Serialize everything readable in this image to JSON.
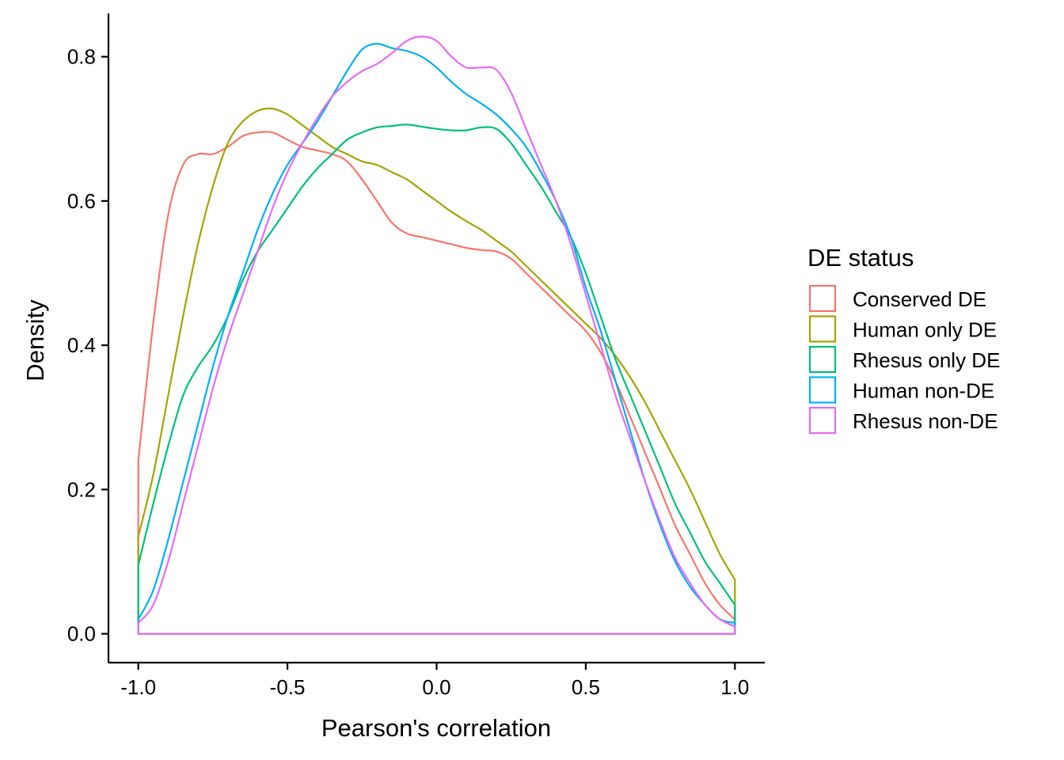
{
  "chart_data": {
    "type": "line",
    "subtype": "density",
    "xlabel": "Pearson's correlation",
    "ylabel": "Density",
    "xlim": [
      -1.1,
      1.1
    ],
    "ylim": [
      -0.04,
      0.86
    ],
    "x_ticks": [
      -1.0,
      -0.5,
      0.0,
      0.5,
      1.0
    ],
    "x_tick_labels": [
      "-1.0",
      "-0.5",
      "0.0",
      "0.5",
      "1.0"
    ],
    "y_ticks": [
      0.0,
      0.2,
      0.4,
      0.6,
      0.8
    ],
    "y_tick_labels": [
      "0.0",
      "0.2",
      "0.4",
      "0.6",
      "0.8"
    ],
    "grid": false,
    "legend": {
      "title": "DE status",
      "position": "right"
    },
    "series": [
      {
        "name": "Conserved DE",
        "color": "#F8766D",
        "x": [
          -1.0,
          -0.95,
          -0.9,
          -0.85,
          -0.8,
          -0.75,
          -0.7,
          -0.65,
          -0.6,
          -0.55,
          -0.5,
          -0.45,
          -0.4,
          -0.35,
          -0.3,
          -0.25,
          -0.2,
          -0.15,
          -0.1,
          -0.05,
          0.0,
          0.05,
          0.1,
          0.15,
          0.2,
          0.25,
          0.3,
          0.35,
          0.4,
          0.45,
          0.5,
          0.55,
          0.6,
          0.65,
          0.7,
          0.75,
          0.8,
          0.85,
          0.9,
          0.95,
          1.0
        ],
        "y": [
          0.24,
          0.43,
          0.58,
          0.65,
          0.665,
          0.665,
          0.675,
          0.69,
          0.695,
          0.695,
          0.685,
          0.675,
          0.67,
          0.665,
          0.655,
          0.63,
          0.6,
          0.57,
          0.555,
          0.55,
          0.545,
          0.54,
          0.535,
          0.532,
          0.53,
          0.52,
          0.5,
          0.48,
          0.46,
          0.44,
          0.42,
          0.39,
          0.35,
          0.3,
          0.25,
          0.2,
          0.15,
          0.11,
          0.07,
          0.04,
          0.02
        ]
      },
      {
        "name": "Human only DE",
        "color": "#A3A500",
        "x": [
          -1.0,
          -0.95,
          -0.9,
          -0.85,
          -0.8,
          -0.75,
          -0.7,
          -0.65,
          -0.6,
          -0.55,
          -0.5,
          -0.45,
          -0.4,
          -0.35,
          -0.3,
          -0.25,
          -0.2,
          -0.15,
          -0.1,
          -0.05,
          0.0,
          0.05,
          0.1,
          0.15,
          0.2,
          0.25,
          0.3,
          0.35,
          0.4,
          0.45,
          0.5,
          0.55,
          0.6,
          0.65,
          0.7,
          0.75,
          0.8,
          0.85,
          0.9,
          0.95,
          1.0
        ],
        "y": [
          0.135,
          0.22,
          0.33,
          0.44,
          0.54,
          0.62,
          0.68,
          0.71,
          0.725,
          0.728,
          0.72,
          0.705,
          0.69,
          0.675,
          0.665,
          0.655,
          0.65,
          0.64,
          0.63,
          0.615,
          0.6,
          0.585,
          0.572,
          0.56,
          0.545,
          0.53,
          0.51,
          0.49,
          0.47,
          0.45,
          0.43,
          0.41,
          0.385,
          0.355,
          0.32,
          0.28,
          0.24,
          0.2,
          0.155,
          0.11,
          0.075
        ]
      },
      {
        "name": "Rhesus only DE",
        "color": "#00BF7D",
        "x": [
          -1.0,
          -0.95,
          -0.9,
          -0.85,
          -0.8,
          -0.75,
          -0.7,
          -0.65,
          -0.6,
          -0.55,
          -0.5,
          -0.45,
          -0.4,
          -0.35,
          -0.3,
          -0.25,
          -0.2,
          -0.15,
          -0.1,
          -0.05,
          0.0,
          0.05,
          0.1,
          0.15,
          0.2,
          0.25,
          0.3,
          0.35,
          0.4,
          0.45,
          0.5,
          0.55,
          0.6,
          0.65,
          0.7,
          0.75,
          0.8,
          0.85,
          0.9,
          0.95,
          1.0
        ],
        "y": [
          0.095,
          0.18,
          0.26,
          0.33,
          0.37,
          0.4,
          0.44,
          0.49,
          0.53,
          0.56,
          0.59,
          0.62,
          0.645,
          0.665,
          0.685,
          0.695,
          0.702,
          0.704,
          0.706,
          0.703,
          0.7,
          0.698,
          0.698,
          0.702,
          0.7,
          0.68,
          0.65,
          0.62,
          0.585,
          0.55,
          0.5,
          0.44,
          0.38,
          0.33,
          0.28,
          0.23,
          0.18,
          0.14,
          0.1,
          0.07,
          0.04
        ]
      },
      {
        "name": "Human non-DE",
        "color": "#00B0F6",
        "x": [
          -1.0,
          -0.95,
          -0.9,
          -0.85,
          -0.8,
          -0.75,
          -0.7,
          -0.65,
          -0.6,
          -0.55,
          -0.5,
          -0.45,
          -0.4,
          -0.35,
          -0.3,
          -0.25,
          -0.2,
          -0.15,
          -0.1,
          -0.05,
          0.0,
          0.05,
          0.1,
          0.15,
          0.2,
          0.25,
          0.3,
          0.35,
          0.4,
          0.45,
          0.5,
          0.55,
          0.6,
          0.65,
          0.7,
          0.75,
          0.8,
          0.85,
          0.9,
          0.95,
          1.0
        ],
        "y": [
          0.02,
          0.06,
          0.13,
          0.21,
          0.29,
          0.37,
          0.44,
          0.5,
          0.56,
          0.61,
          0.65,
          0.68,
          0.71,
          0.745,
          0.78,
          0.81,
          0.818,
          0.812,
          0.808,
          0.8,
          0.785,
          0.765,
          0.748,
          0.735,
          0.72,
          0.7,
          0.675,
          0.64,
          0.6,
          0.55,
          0.48,
          0.42,
          0.35,
          0.28,
          0.21,
          0.15,
          0.1,
          0.065,
          0.04,
          0.02,
          0.015
        ]
      },
      {
        "name": "Rhesus non-DE",
        "color": "#E76BF3",
        "x": [
          -1.0,
          -0.95,
          -0.9,
          -0.85,
          -0.8,
          -0.75,
          -0.7,
          -0.65,
          -0.6,
          -0.55,
          -0.5,
          -0.45,
          -0.4,
          -0.35,
          -0.3,
          -0.25,
          -0.2,
          -0.15,
          -0.1,
          -0.05,
          0.0,
          0.05,
          0.1,
          0.15,
          0.2,
          0.25,
          0.3,
          0.35,
          0.4,
          0.45,
          0.5,
          0.55,
          0.6,
          0.65,
          0.7,
          0.75,
          0.8,
          0.85,
          0.9,
          0.95,
          1.0
        ],
        "y": [
          0.015,
          0.04,
          0.1,
          0.18,
          0.26,
          0.34,
          0.41,
          0.47,
          0.53,
          0.59,
          0.64,
          0.68,
          0.715,
          0.745,
          0.765,
          0.78,
          0.79,
          0.805,
          0.822,
          0.828,
          0.822,
          0.8,
          0.785,
          0.785,
          0.782,
          0.75,
          0.7,
          0.65,
          0.6,
          0.54,
          0.47,
          0.4,
          0.33,
          0.27,
          0.21,
          0.155,
          0.105,
          0.07,
          0.04,
          0.02,
          0.01
        ]
      }
    ]
  }
}
